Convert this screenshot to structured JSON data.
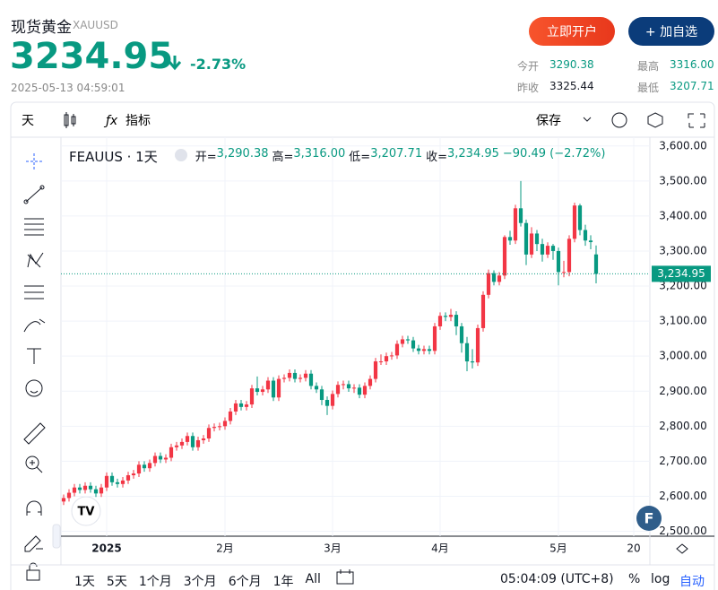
{
  "header": {
    "name": "现货黄金",
    "symbol": "XAUUSD",
    "price": "3234.95",
    "change": "-2.73%",
    "time": "2025-05-13 04:59:01",
    "buttons": [
      "立即开户",
      "+ 加自选"
    ],
    "stats": [
      [
        "今开",
        "3290.38"
      ],
      [
        "最高",
        "3316.00"
      ],
      [
        "昨收",
        "3325.44"
      ],
      [
        "最低",
        "3207.71"
      ]
    ]
  },
  "toolbar": {
    "interval": "天",
    "indicators": "指标",
    "save": "保存"
  },
  "chart_data": {
    "type": "candlestick",
    "legend": "FEAUUS · 1天",
    "ohlc_text": [
      [
        "开=",
        "3,290.38"
      ],
      [
        "高=",
        "3,316.00"
      ],
      [
        "低=",
        "3,207.71"
      ],
      [
        "收=",
        "3,234.95"
      ]
    ],
    "change_text": "−90.49 (−2.72%)",
    "up_color": "#f23645",
    "down_color": "#089981",
    "grid": true,
    "open": [
      2585,
      2595,
      2610,
      2625,
      2618,
      2630,
      2620,
      2608,
      2625,
      2658,
      2640,
      2635,
      2645,
      2660,
      2665,
      2690,
      2680,
      2695,
      2715,
      2705,
      2710,
      2740,
      2745,
      2755,
      2772,
      2740,
      2760,
      2765,
      2795,
      2798,
      2800,
      2815,
      2842,
      2865,
      2855,
      2862,
      2908,
      2898,
      2905,
      2930,
      2882,
      2935,
      2938,
      2952,
      2935,
      2938,
      2950,
      2915,
      2905,
      2875,
      2858,
      2892,
      2918,
      2920,
      2908,
      2910,
      2890,
      2915,
      2935,
      2985,
      2985,
      3000,
      3002,
      3035,
      3048,
      3045,
      3022,
      3015,
      3020,
      3015,
      3085,
      3115,
      3112,
      3118,
      3085,
      3037,
      2985,
      2982,
      3080,
      3175,
      3237,
      3212,
      3230,
      3340,
      3330,
      3422,
      3380,
      3290,
      3350,
      3320,
      3290,
      3315,
      3300,
      3240,
      3240,
      3335,
      3430,
      3360,
      3330,
      3290.38
    ],
    "high": [
      2605,
      2620,
      2635,
      2635,
      2640,
      2640,
      2630,
      2635,
      2668,
      2668,
      2650,
      2655,
      2670,
      2675,
      2700,
      2700,
      2705,
      2725,
      2725,
      2720,
      2750,
      2755,
      2765,
      2782,
      2782,
      2770,
      2775,
      2805,
      2808,
      2810,
      2825,
      2852,
      2875,
      2875,
      2872,
      2918,
      2942,
      2915,
      2940,
      2940,
      2945,
      2948,
      2962,
      2962,
      2948,
      2960,
      2960,
      2925,
      2915,
      2885,
      2902,
      2928,
      2930,
      2930,
      2920,
      2920,
      2925,
      2945,
      2995,
      3005,
      3010,
      3012,
      3045,
      3058,
      3058,
      3055,
      3032,
      3030,
      3030,
      3095,
      3125,
      3125,
      3135,
      3128,
      3095,
      3055,
      3020,
      3090,
      3185,
      3247,
      3245,
      3240,
      3345,
      3358,
      3432,
      3500,
      3390,
      3368,
      3360,
      3335,
      3325,
      3320,
      3310,
      3272,
      3345,
      3438,
      3435,
      3375,
      3345,
      3316
    ],
    "low": [
      2575,
      2585,
      2600,
      2608,
      2608,
      2610,
      2598,
      2598,
      2615,
      2630,
      2625,
      2625,
      2635,
      2650,
      2655,
      2670,
      2670,
      2685,
      2695,
      2695,
      2700,
      2730,
      2735,
      2745,
      2730,
      2730,
      2750,
      2755,
      2785,
      2788,
      2790,
      2805,
      2832,
      2845,
      2845,
      2852,
      2888,
      2888,
      2895,
      2872,
      2872,
      2925,
      2928,
      2925,
      2925,
      2928,
      2905,
      2895,
      2860,
      2832,
      2848,
      2882,
      2905,
      2898,
      2895,
      2880,
      2880,
      2905,
      2925,
      2975,
      2975,
      2990,
      2992,
      3025,
      3035,
      3012,
      3005,
      3005,
      3005,
      3005,
      3075,
      3100,
      3100,
      3060,
      3010,
      2957,
      2965,
      2972,
      3070,
      3165,
      3202,
      3202,
      3220,
      3318,
      3320,
      3370,
      3260,
      3280,
      3300,
      3270,
      3280,
      3275,
      3202,
      3225,
      3228,
      3325,
      3345,
      3315,
      3305,
      3207.71
    ],
    "close": [
      2595,
      2610,
      2625,
      2618,
      2630,
      2620,
      2608,
      2625,
      2658,
      2640,
      2635,
      2645,
      2660,
      2665,
      2690,
      2680,
      2695,
      2715,
      2705,
      2710,
      2740,
      2745,
      2755,
      2772,
      2740,
      2760,
      2765,
      2795,
      2798,
      2800,
      2815,
      2842,
      2865,
      2855,
      2862,
      2908,
      2898,
      2905,
      2930,
      2882,
      2935,
      2938,
      2952,
      2935,
      2938,
      2950,
      2915,
      2905,
      2875,
      2858,
      2892,
      2918,
      2920,
      2908,
      2910,
      2890,
      2915,
      2935,
      2985,
      2985,
      3000,
      3002,
      3035,
      3048,
      3045,
      3022,
      3015,
      3020,
      3015,
      3085,
      3115,
      3112,
      3118,
      3085,
      3037,
      2985,
      2982,
      3080,
      3175,
      3237,
      3212,
      3230,
      3340,
      3330,
      3422,
      3380,
      3290,
      3350,
      3320,
      3290,
      3315,
      3300,
      3240,
      3240,
      3335,
      3430,
      3360,
      3330,
      3325.44,
      3234.95
    ],
    "xlim": [
      -0.5,
      109
    ],
    "xticks": [
      {
        "value": 8,
        "label": "2025"
      },
      {
        "value": 30,
        "label": "2月"
      },
      {
        "value": 50,
        "label": "3月"
      },
      {
        "value": 70,
        "label": "4月"
      },
      {
        "value": 92,
        "label": "5月"
      },
      {
        "value": 106,
        "label": "20"
      }
    ],
    "ylim": [
      2486,
      3625
    ],
    "yticks": [
      {
        "value": 2500,
        "label": "2,500.00"
      },
      {
        "value": 2600,
        "label": "2,600.00"
      },
      {
        "value": 2700,
        "label": "2,700.00"
      },
      {
        "value": 2800,
        "label": "2,800.00"
      },
      {
        "value": 2900,
        "label": "2,900.00"
      },
      {
        "value": 3000,
        "label": "3,000.00"
      },
      {
        "value": 3100,
        "label": "3,100.00"
      },
      {
        "value": 3200,
        "label": "3,200.00"
      },
      {
        "value": 3300,
        "label": "3,300.00"
      },
      {
        "value": 3400,
        "label": "3,400.00"
      },
      {
        "value": 3500,
        "label": "3,500.00"
      },
      {
        "value": 3600,
        "label": "3,600.00"
      }
    ],
    "price_line": {
      "value": 3234.95,
      "label": "3,234.95"
    }
  },
  "bottom_bar": {
    "ranges": [
      "1天",
      "5天",
      "1个月",
      "3个月",
      "6个月",
      "1年",
      "All"
    ],
    "time": "05:04:09 (UTC+8)",
    "percent": "%",
    "log": "log",
    "auto": "自动"
  }
}
